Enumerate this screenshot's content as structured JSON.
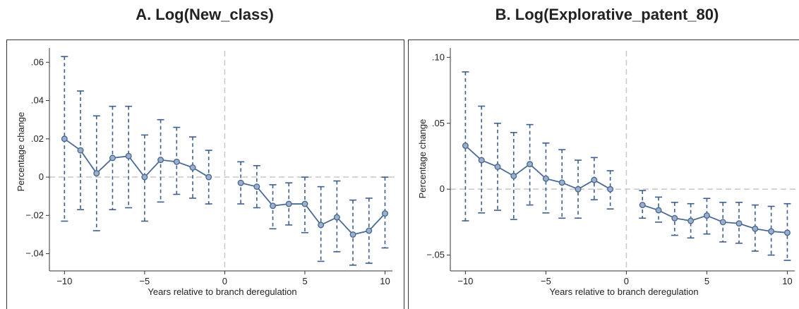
{
  "chart_data": [
    {
      "type": "line",
      "title": "A. Log(New_class)",
      "xlabel": "Years relative to branch deregulation",
      "ylabel": "Percentage change",
      "xlim": [
        -10.5,
        10.2
      ],
      "ylim": [
        -0.049,
        0.066
      ],
      "xticks": [
        -10,
        -5,
        0,
        5,
        10
      ],
      "xtick_labels": [
        "−10",
        "−5",
        "0",
        "5",
        "10"
      ],
      "yticks": [
        -0.04,
        -0.02,
        0,
        0.02,
        0.04,
        0.06
      ],
      "ytick_labels": [
        "−.04",
        "−.02",
        "0",
        ".02",
        ".04",
        ".06"
      ],
      "reference_lines": {
        "x": 0,
        "y": 0
      },
      "segments": [
        {
          "x": [
            -10,
            -9,
            -8,
            -7,
            -6,
            -5,
            -4,
            -3,
            -2,
            -1
          ],
          "y": [
            0.02,
            0.014,
            0.002,
            0.01,
            0.011,
            0.0,
            0.009,
            0.008,
            0.005,
            0.0
          ],
          "ci_low": [
            -0.023,
            -0.017,
            -0.028,
            -0.017,
            -0.016,
            -0.023,
            -0.013,
            -0.009,
            -0.011,
            -0.014
          ],
          "ci_high": [
            0.063,
            0.045,
            0.032,
            0.037,
            0.037,
            0.022,
            0.03,
            0.026,
            0.021,
            0.014
          ]
        },
        {
          "x": [
            1,
            2,
            3,
            4,
            5,
            6,
            7,
            8,
            9,
            10
          ],
          "y": [
            -0.003,
            -0.005,
            -0.015,
            -0.014,
            -0.014,
            -0.025,
            -0.021,
            -0.03,
            -0.028,
            -0.019
          ],
          "ci_low": [
            -0.014,
            -0.016,
            -0.027,
            -0.025,
            -0.029,
            -0.044,
            -0.039,
            -0.046,
            -0.045,
            -0.037
          ],
          "ci_high": [
            0.008,
            0.006,
            -0.004,
            -0.003,
            0.0,
            -0.005,
            -0.002,
            -0.012,
            -0.011,
            0.0
          ]
        }
      ],
      "colors": {
        "line": "#4a6a96",
        "ci": "#3d5f8f",
        "ref": "#c8c8c8"
      }
    },
    {
      "type": "line",
      "title": "B. Log(Explorative_patent_80)",
      "xlabel": "Years relative to branch deregulation",
      "ylabel": "Percentage change",
      "xlim": [
        -10.5,
        10.2
      ],
      "ylim": [
        -0.062,
        0.105
      ],
      "xticks": [
        -10,
        -5,
        0,
        5,
        10
      ],
      "xtick_labels": [
        "−10",
        "−5",
        "0",
        "5",
        "10"
      ],
      "yticks": [
        -0.05,
        0,
        0.05,
        0.1
      ],
      "ytick_labels": [
        "−.05",
        "0",
        ".05",
        ".10"
      ],
      "reference_lines": {
        "x": 0,
        "y": 0
      },
      "segments": [
        {
          "x": [
            -10,
            -9,
            -8,
            -7,
            -6,
            -5,
            -4,
            -3,
            -2,
            -1
          ],
          "y": [
            0.033,
            0.022,
            0.017,
            0.01,
            0.019,
            0.008,
            0.005,
            0.0,
            0.007,
            0.0
          ],
          "ci_low": [
            -0.024,
            -0.018,
            -0.016,
            -0.023,
            -0.012,
            -0.018,
            -0.022,
            -0.022,
            -0.008,
            -0.015
          ],
          "ci_high": [
            0.089,
            0.063,
            0.05,
            0.043,
            0.049,
            0.035,
            0.03,
            0.022,
            0.024,
            0.014
          ]
        },
        {
          "x": [
            1,
            2,
            3,
            4,
            5,
            6,
            7,
            8,
            9,
            10
          ],
          "y": [
            -0.012,
            -0.016,
            -0.022,
            -0.024,
            -0.02,
            -0.025,
            -0.026,
            -0.03,
            -0.032,
            -0.033
          ],
          "ci_low": [
            -0.022,
            -0.025,
            -0.035,
            -0.037,
            -0.034,
            -0.04,
            -0.041,
            -0.047,
            -0.05,
            -0.054
          ],
          "ci_high": [
            -0.001,
            -0.006,
            -0.01,
            -0.011,
            -0.007,
            -0.01,
            -0.01,
            -0.012,
            -0.013,
            -0.011
          ]
        }
      ],
      "colors": {
        "line": "#4a6a96",
        "ci": "#3d5f8f",
        "ref": "#c8c8c8"
      }
    }
  ]
}
